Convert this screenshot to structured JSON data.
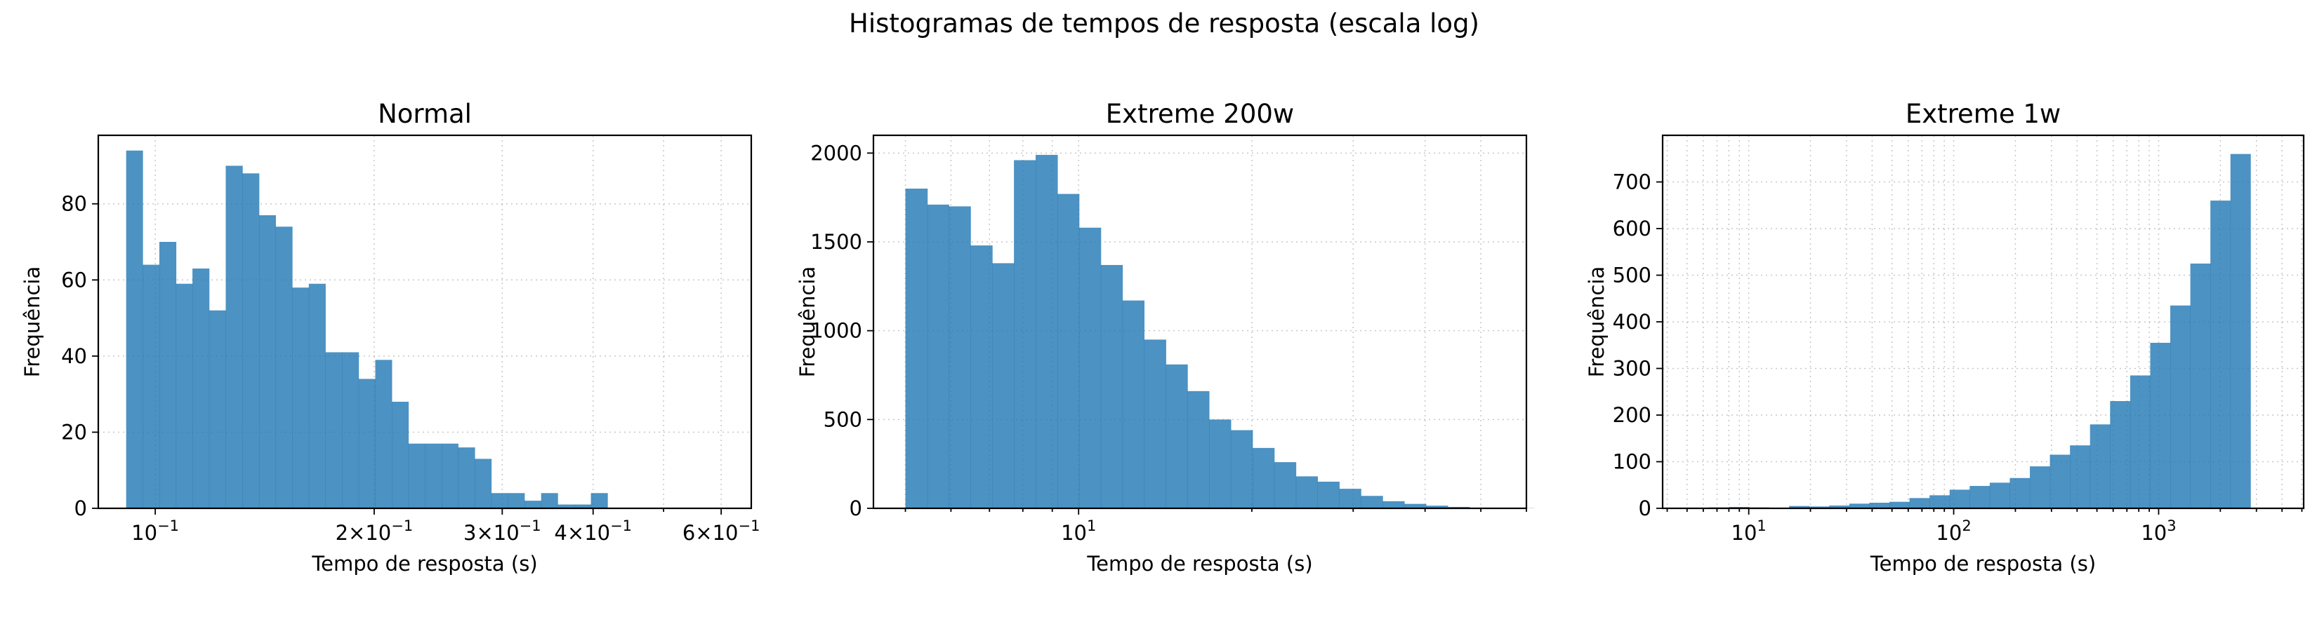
{
  "figure": {
    "title": "Histogramas de tempos de resposta (escala log)"
  },
  "colors": {
    "bar": "#1f77b4",
    "bar_opacity": 0.8
  },
  "chart_data": [
    {
      "type": "histogram",
      "title": "Normal",
      "xlabel": "Tempo de resposta (s)",
      "ylabel": "Frequência",
      "x_scale": "log",
      "xlim": [
        0.0835,
        0.66
      ],
      "ylim": [
        0,
        98
      ],
      "grid": true,
      "bin_edges": [
        0.0912,
        0.0961,
        0.1013,
        0.1068,
        0.1125,
        0.1186,
        0.125,
        0.1318,
        0.1389,
        0.1464,
        0.1543,
        0.1626,
        0.1714,
        0.1806,
        0.1904,
        0.2007,
        0.2115,
        0.2229,
        0.2349,
        0.2476,
        0.2609,
        0.275,
        0.2898,
        0.3055,
        0.3219,
        0.3393,
        0.3576,
        0.3769,
        0.3972,
        0.4187,
        0.4412,
        0.4651,
        0.4901,
        0.5166,
        0.5444,
        0.5738,
        0.6047
      ],
      "counts": [
        94,
        64,
        70,
        59,
        63,
        52,
        90,
        88,
        77,
        74,
        58,
        59,
        41,
        41,
        34,
        39,
        28,
        17,
        17,
        17,
        16,
        13,
        4,
        4,
        2,
        4,
        1,
        1,
        4,
        0,
        0,
        0,
        0,
        0,
        0,
        0
      ],
      "xticks": [
        {
          "value": 0.1,
          "label": "10⁻¹",
          "base": "10",
          "exp": "−1"
        },
        {
          "value": 0.2,
          "label": "2×10⁻¹",
          "mant": "2",
          "base": "10",
          "exp": "−1"
        },
        {
          "value": 0.3,
          "label": "3×10⁻¹",
          "mant": "3",
          "base": "10",
          "exp": "−1"
        },
        {
          "value": 0.4,
          "label": "4×10⁻¹",
          "mant": "4",
          "base": "10",
          "exp": "−1"
        },
        {
          "value": 0.6,
          "label": "6×10⁻¹",
          "mant": "6",
          "base": "10",
          "exp": "−1"
        }
      ],
      "yticks": [
        0,
        20,
        40,
        60,
        80
      ],
      "minor_grid": [
        0.5
      ]
    },
    {
      "type": "histogram",
      "title": "Extreme 200w",
      "xlabel": "Tempo de resposta (s)",
      "ylabel": "Frequência",
      "x_scale": "log",
      "xlim": [
        4.4,
        60
      ],
      "ylim": [
        0,
        2100
      ],
      "grid": true,
      "bin_edges": [
        5.0,
        5.46,
        5.95,
        6.49,
        7.08,
        7.72,
        8.42,
        9.19,
        10.02,
        10.93,
        11.92,
        13.0,
        14.18,
        15.46,
        16.86,
        18.39,
        20.06,
        21.88,
        23.86,
        26.02,
        28.38,
        30.95,
        33.76,
        36.82,
        40.16,
        43.8,
        47.77,
        52.1,
        56.82,
        61.97
      ],
      "counts": [
        1800,
        1710,
        1700,
        1480,
        1380,
        1960,
        1990,
        1770,
        1580,
        1370,
        1170,
        950,
        810,
        660,
        500,
        440,
        340,
        260,
        180,
        150,
        110,
        70,
        40,
        25,
        15,
        8,
        4,
        2,
        1
      ],
      "xticks": [
        {
          "value": 10,
          "label": "10¹",
          "base": "10",
          "exp": "1"
        }
      ],
      "yticks": [
        0,
        500,
        1000,
        1500,
        2000
      ],
      "minor_grid": [
        5,
        6,
        7,
        8,
        9,
        20,
        30,
        40,
        50,
        60
      ]
    },
    {
      "type": "histogram",
      "title": "Extreme 1w",
      "xlabel": "Tempo de resposta (s)",
      "ylabel": "Frequência",
      "x_scale": "log",
      "xlim": [
        3.8,
        5100
      ],
      "ylim": [
        0,
        800
      ],
      "grid": true,
      "bin_edges": [
        5.1,
        6.39,
        8.0,
        10.03,
        12.56,
        15.74,
        19.72,
        24.7,
        30.95,
        38.77,
        48.57,
        60.85,
        76.24,
        95.51,
        119.66,
        149.9,
        187.8,
        235.3,
        294.7,
        369.3,
        462.6,
        579.6,
        726.1,
        909.6,
        1139.6,
        1427.6,
        1788.5,
        2240.7,
        2807.1
      ],
      "counts": [
        1,
        2,
        3,
        2,
        1,
        5,
        4,
        6,
        10,
        12,
        14,
        22,
        28,
        40,
        48,
        55,
        65,
        90,
        115,
        135,
        180,
        230,
        285,
        355,
        435,
        525,
        660,
        760
      ],
      "xticks": [
        {
          "value": 10,
          "label": "10¹",
          "base": "10",
          "exp": "1"
        },
        {
          "value": 100,
          "label": "10²",
          "base": "10",
          "exp": "2"
        },
        {
          "value": 1000,
          "label": "10³",
          "base": "10",
          "exp": "3"
        }
      ],
      "yticks": [
        0,
        100,
        200,
        300,
        400,
        500,
        600,
        700
      ],
      "minor_grid": [
        4,
        5,
        6,
        7,
        8,
        9,
        20,
        30,
        40,
        50,
        60,
        70,
        80,
        90,
        200,
        300,
        400,
        500,
        600,
        700,
        800,
        900,
        2000,
        3000,
        4000,
        5000
      ]
    }
  ]
}
